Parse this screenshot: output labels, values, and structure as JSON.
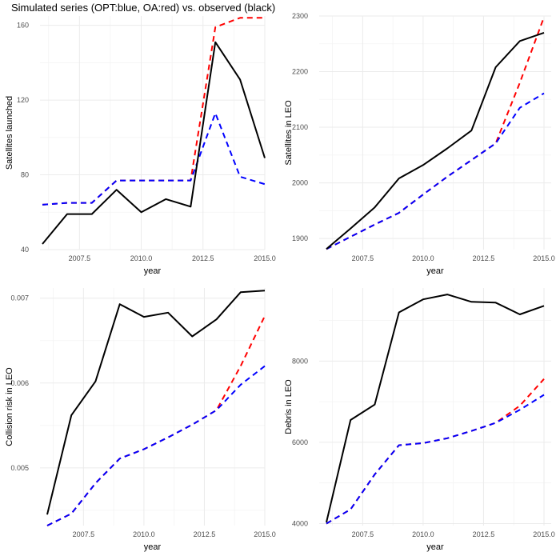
{
  "title": "Simulated series (OPT:blue, OA:red) vs. observed (black)",
  "colors": {
    "observed": "#000000",
    "opt": "#0000ff",
    "oa": "#ff0000"
  },
  "chart_data": [
    {
      "type": "line",
      "xlabel": "year",
      "ylabel": "Satellites launched",
      "xlim": [
        2006,
        2015
      ],
      "ylim": [
        40,
        165
      ],
      "xticks": [
        2007.5,
        2010.0,
        2012.5,
        2015.0
      ],
      "xtick_labels": [
        "2007.5",
        "2010.0",
        "2012.5",
        "2015.0"
      ],
      "yticks": [
        40,
        80,
        120,
        160
      ],
      "ytick_labels": [
        "40",
        "80",
        "120",
        "160"
      ],
      "x": [
        2006,
        2007,
        2008,
        2009,
        2010,
        2011,
        2012,
        2013,
        2014,
        2015
      ],
      "series": [
        {
          "color": "#000000",
          "dash": "solid",
          "values": [
            43,
            59,
            59,
            72,
            60,
            67,
            63,
            151,
            131,
            89
          ]
        },
        {
          "color": "#0000ff",
          "dash": "dashed",
          "values": [
            64,
            65,
            65,
            77,
            77,
            77,
            77,
            113,
            79,
            75
          ]
        },
        {
          "color": "#ff0000",
          "dash": "dashed",
          "values": [
            64,
            65,
            65,
            77,
            77,
            77,
            77,
            159,
            164,
            164
          ]
        }
      ]
    },
    {
      "type": "line",
      "xlabel": "year",
      "ylabel": "Satellites in LEO",
      "xlim": [
        2006,
        2015
      ],
      "ylim": [
        1880,
        2300
      ],
      "xticks": [
        2007.5,
        2010.0,
        2012.5,
        2015.0
      ],
      "xtick_labels": [
        "2007.5",
        "2010.0",
        "2012.5",
        "2015.0"
      ],
      "yticks": [
        1900,
        2000,
        2100,
        2200,
        2300
      ],
      "ytick_labels": [
        "1900",
        "2000",
        "2100",
        "2200",
        "2300"
      ],
      "x": [
        2006,
        2007,
        2008,
        2009,
        2010,
        2011,
        2012,
        2013,
        2014,
        2015
      ],
      "series": [
        {
          "color": "#000000",
          "dash": "solid",
          "values": [
            1881,
            1918,
            1956,
            2008,
            2032,
            2062,
            2094,
            2208,
            2255,
            2270
          ]
        },
        {
          "color": "#0000ff",
          "dash": "dashed",
          "values": [
            1881,
            1903,
            1925,
            1946,
            1979,
            2011,
            2041,
            2071,
            2135,
            2161
          ]
        },
        {
          "color": "#ff0000",
          "dash": "dashed",
          "values": [
            1881,
            1903,
            1925,
            1946,
            1979,
            2011,
            2041,
            2071,
            2180,
            2298
          ]
        }
      ]
    },
    {
      "type": "line",
      "xlabel": "year",
      "ylabel": "Collision risk in LEO",
      "xlim": [
        2006,
        2015
      ],
      "ylim": [
        0.00432,
        0.00712
      ],
      "xticks": [
        2007.5,
        2010.0,
        2012.5,
        2015.0
      ],
      "xtick_labels": [
        "2007.5",
        "2010.0",
        "2012.5",
        "2015.0"
      ],
      "yticks": [
        0.005,
        0.006,
        0.007
      ],
      "ytick_labels": [
        "0.005",
        "0.006",
        "0.007"
      ],
      "x": [
        2006,
        2007,
        2008,
        2009,
        2010,
        2011,
        2012,
        2013,
        2014,
        2015
      ],
      "series": [
        {
          "color": "#000000",
          "dash": "solid",
          "values": [
            0.00445,
            0.00562,
            0.00602,
            0.00693,
            0.00678,
            0.00683,
            0.00655,
            0.00675,
            0.00707,
            0.00709
          ]
        },
        {
          "color": "#0000ff",
          "dash": "dashed",
          "values": [
            0.00432,
            0.00446,
            0.00482,
            0.00511,
            0.00522,
            0.00536,
            0.00551,
            0.00568,
            0.00598,
            0.0062
          ]
        },
        {
          "color": "#ff0000",
          "dash": "dashed",
          "values": [
            0.00432,
            0.00446,
            0.00482,
            0.00511,
            0.00522,
            0.00536,
            0.00551,
            0.00568,
            0.0062,
            0.00679
          ]
        }
      ]
    },
    {
      "type": "line",
      "xlabel": "year",
      "ylabel": "Debris in LEO",
      "xlim": [
        2006,
        2015
      ],
      "ylim": [
        3950,
        9800
      ],
      "xticks": [
        2007.5,
        2010.0,
        2012.5,
        2015.0
      ],
      "xtick_labels": [
        "2007.5",
        "2010.0",
        "2012.5",
        "2015.0"
      ],
      "yticks": [
        4000,
        6000,
        8000
      ],
      "ytick_labels": [
        "4000",
        "6000",
        "8000"
      ],
      "x": [
        2006,
        2007,
        2008,
        2009,
        2010,
        2011,
        2012,
        2013,
        2014,
        2015
      ],
      "series": [
        {
          "color": "#000000",
          "dash": "solid",
          "values": [
            4030,
            6550,
            6930,
            9200,
            9520,
            9640,
            9460,
            9440,
            9150,
            9360
          ]
        },
        {
          "color": "#0000ff",
          "dash": "dashed",
          "values": [
            4000,
            4350,
            5210,
            5930,
            5980,
            6100,
            6280,
            6480,
            6800,
            7170
          ]
        },
        {
          "color": "#ff0000",
          "dash": "dashed",
          "values": [
            4000,
            4350,
            5210,
            5930,
            5980,
            6100,
            6280,
            6480,
            6900,
            7560
          ]
        }
      ]
    }
  ]
}
